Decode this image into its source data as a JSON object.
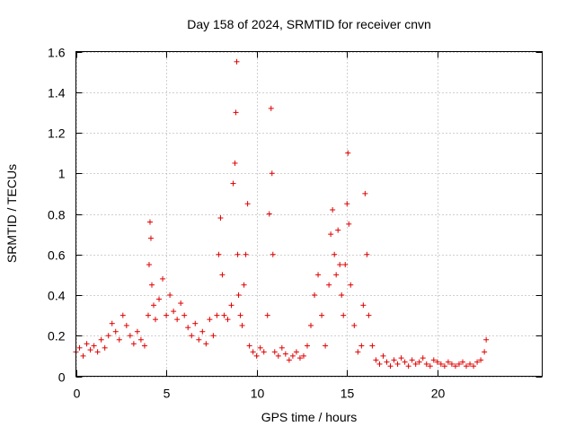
{
  "chart_data": {
    "type": "scatter",
    "title": "Day 158 of 2024, SRMTID for receiver cnvn",
    "xlabel": "GPS time / hours",
    "ylabel": "SRMTID / TECUs",
    "xlim": [
      0,
      25.8
    ],
    "ylim": [
      0,
      1.6
    ],
    "x_ticks": [
      0,
      5,
      10,
      15,
      20
    ],
    "y_ticks": [
      0,
      0.2,
      0.4,
      0.6,
      0.8,
      1,
      1.2,
      1.4,
      1.6
    ],
    "x_tick_labels": [
      "0",
      "5",
      "10",
      "15",
      "20"
    ],
    "y_tick_labels": [
      "0",
      "0.2",
      "0.4",
      "0.6",
      "0.8",
      "1",
      "1.2",
      "1.4",
      "1.6"
    ],
    "grid": true,
    "marker": "+",
    "marker_color": "#e00000",
    "series": [
      {
        "name": "SRMTID",
        "x": [
          0.0,
          0.2,
          0.4,
          0.6,
          0.8,
          1.0,
          1.2,
          1.4,
          1.6,
          1.8,
          2.0,
          2.2,
          2.4,
          2.6,
          2.8,
          3.0,
          3.2,
          3.4,
          3.6,
          3.8,
          4.0,
          4.05,
          4.1,
          4.15,
          4.2,
          4.3,
          4.4,
          4.6,
          4.8,
          5.0,
          5.2,
          5.4,
          5.6,
          5.8,
          6.0,
          6.2,
          6.4,
          6.6,
          6.8,
          7.0,
          7.2,
          7.4,
          7.6,
          7.8,
          7.9,
          8.0,
          8.1,
          8.2,
          8.4,
          8.6,
          8.7,
          8.8,
          8.85,
          8.9,
          8.95,
          9.0,
          9.1,
          9.2,
          9.3,
          9.4,
          9.5,
          9.6,
          9.8,
          10.0,
          10.2,
          10.4,
          10.6,
          10.7,
          10.8,
          10.85,
          10.9,
          11.0,
          11.2,
          11.4,
          11.6,
          11.8,
          12.0,
          12.2,
          12.4,
          12.6,
          12.8,
          13.0,
          13.2,
          13.4,
          13.6,
          13.8,
          14.0,
          14.1,
          14.2,
          14.3,
          14.4,
          14.5,
          14.6,
          14.7,
          14.8,
          14.9,
          15.0,
          15.05,
          15.1,
          15.2,
          15.4,
          15.6,
          15.8,
          15.9,
          16.0,
          16.1,
          16.2,
          16.4,
          16.6,
          16.8,
          17.0,
          17.2,
          17.4,
          17.6,
          17.8,
          18.0,
          18.2,
          18.4,
          18.6,
          18.8,
          19.0,
          19.2,
          19.4,
          19.6,
          19.8,
          20.0,
          20.2,
          20.4,
          20.6,
          20.8,
          21.0,
          21.2,
          21.4,
          21.6,
          21.8,
          22.0,
          22.2,
          22.4,
          22.6,
          22.7
        ],
        "y": [
          0.12,
          0.14,
          0.1,
          0.16,
          0.13,
          0.15,
          0.12,
          0.18,
          0.14,
          0.2,
          0.26,
          0.22,
          0.18,
          0.3,
          0.25,
          0.2,
          0.16,
          0.22,
          0.18,
          0.15,
          0.3,
          0.55,
          0.76,
          0.68,
          0.45,
          0.35,
          0.28,
          0.38,
          0.48,
          0.3,
          0.4,
          0.32,
          0.28,
          0.36,
          0.3,
          0.24,
          0.2,
          0.26,
          0.18,
          0.22,
          0.16,
          0.28,
          0.2,
          0.3,
          0.6,
          0.78,
          0.5,
          0.3,
          0.28,
          0.35,
          0.95,
          1.05,
          1.3,
          1.55,
          0.6,
          0.4,
          0.3,
          0.25,
          0.45,
          0.6,
          0.85,
          0.15,
          0.12,
          0.1,
          0.14,
          0.12,
          0.3,
          0.8,
          1.32,
          1.0,
          0.6,
          0.12,
          0.1,
          0.14,
          0.11,
          0.08,
          0.1,
          0.12,
          0.09,
          0.1,
          0.15,
          0.25,
          0.4,
          0.5,
          0.3,
          0.15,
          0.45,
          0.7,
          0.82,
          0.6,
          0.5,
          0.72,
          0.55,
          0.4,
          0.3,
          0.55,
          0.85,
          1.1,
          0.75,
          0.45,
          0.25,
          0.12,
          0.15,
          0.35,
          0.9,
          0.6,
          0.3,
          0.15,
          0.08,
          0.06,
          0.1,
          0.07,
          0.05,
          0.08,
          0.06,
          0.09,
          0.07,
          0.05,
          0.08,
          0.06,
          0.07,
          0.09,
          0.06,
          0.05,
          0.08,
          0.07,
          0.06,
          0.05,
          0.07,
          0.06,
          0.05,
          0.06,
          0.07,
          0.05,
          0.06,
          0.05,
          0.07,
          0.08,
          0.12,
          0.18
        ]
      }
    ]
  }
}
